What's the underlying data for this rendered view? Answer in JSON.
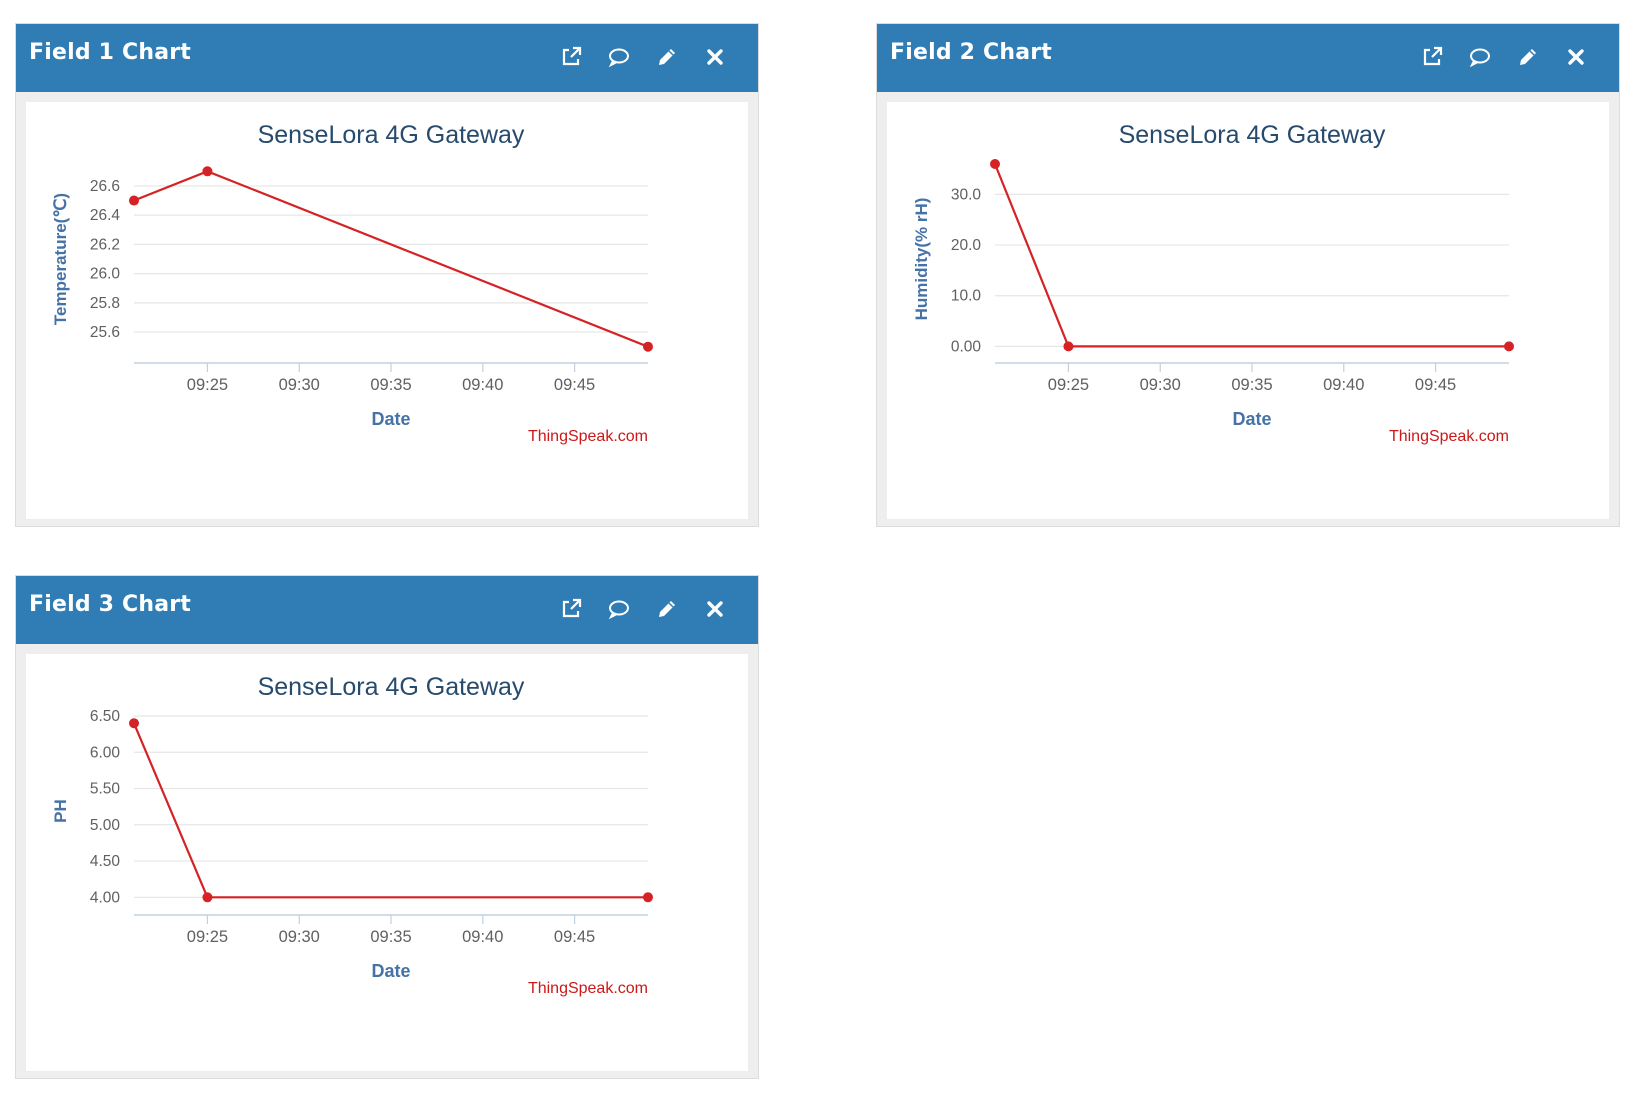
{
  "widgets": [
    {
      "header": {
        "title": "Field 1 Chart"
      },
      "chart_data": {
        "type": "line",
        "title": "SenseLora 4G Gateway",
        "xlabel": "Date",
        "ylabel": "Temperature(℃)",
        "credit": "ThingSpeak.com",
        "x_ticks": [
          "09:25",
          "09:30",
          "09:35",
          "09:40",
          "09:45"
        ],
        "y_ticks": [
          "25.6",
          "25.8",
          "26.0",
          "26.2",
          "26.4",
          "26.6"
        ],
        "ylim": [
          25.45,
          26.75
        ],
        "xlim": [
          "09:21",
          "09:49"
        ],
        "grid": true,
        "series": [
          {
            "x": [
              "09:21",
              "09:25",
              "09:49"
            ],
            "values": [
              26.5,
              26.7,
              25.5
            ]
          }
        ],
        "line_color": "#d52225"
      }
    },
    {
      "header": {
        "title": "Field 2 Chart"
      },
      "chart_data": {
        "type": "line",
        "title": "SenseLora 4G Gateway",
        "xlabel": "Date",
        "ylabel": "Humidity(% rH)",
        "credit": "ThingSpeak.com",
        "x_ticks": [
          "09:25",
          "09:30",
          "09:35",
          "09:40",
          "09:45"
        ],
        "y_ticks": [
          "0.00",
          "10.0",
          "20.0",
          "30.0"
        ],
        "ylim": [
          -1.5,
          36
        ],
        "xlim": [
          "09:21",
          "09:49"
        ],
        "grid": true,
        "series": [
          {
            "x": [
              "09:21",
              "09:25",
              "09:49"
            ],
            "values": [
              36,
              0,
              0
            ]
          }
        ],
        "line_color": "#d52225"
      }
    },
    {
      "header": {
        "title": "Field 3 Chart"
      },
      "chart_data": {
        "type": "line",
        "title": "SenseLora 4G Gateway",
        "xlabel": "Date",
        "ylabel": "PH",
        "credit": "ThingSpeak.com",
        "x_ticks": [
          "09:25",
          "09:30",
          "09:35",
          "09:40",
          "09:45"
        ],
        "y_ticks": [
          "4.00",
          "4.50",
          "5.00",
          "5.50",
          "6.00",
          "6.50"
        ],
        "ylim": [
          3.88,
          6.5
        ],
        "xlim": [
          "09:21",
          "09:49"
        ],
        "grid": true,
        "series": [
          {
            "x": [
              "09:21",
              "09:25",
              "09:49"
            ],
            "values": [
              6.4,
              4.0,
              4.0
            ]
          }
        ],
        "line_color": "#d52225"
      }
    }
  ],
  "icons": [
    "external-link-icon",
    "comment-icon",
    "pencil-icon",
    "close-icon"
  ],
  "colors": {
    "header": "#2f7db4",
    "title": "#274b6d",
    "axis_label": "#4572a7",
    "series": "#d52225",
    "grid": "#e6e6e6"
  }
}
